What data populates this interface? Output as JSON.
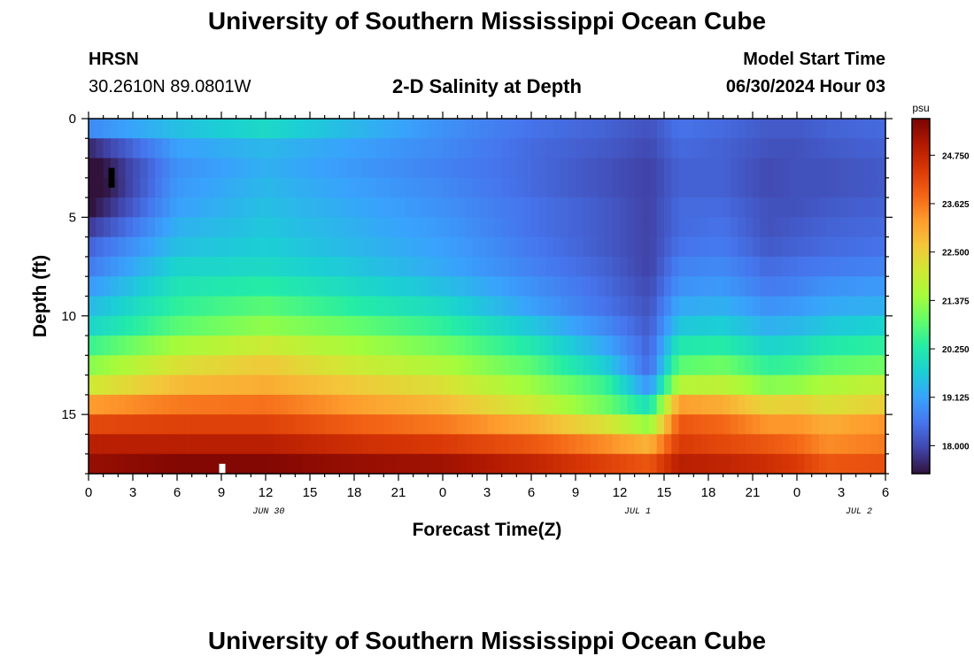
{
  "header": {
    "title": "University of Southern Mississippi Ocean Cube",
    "station": "HRSN",
    "coords": "30.2610N  89.0801W",
    "plot_title": "2-D Salinity at Depth",
    "model_label": "Model Start Time",
    "model_time": "06/30/2024 Hour 03"
  },
  "footer": {
    "title": "University of Southern Mississippi Ocean Cube"
  },
  "chart_data": {
    "type": "heatmap",
    "title": "2-D Salinity at Depth",
    "xlabel": "Forecast Time(Z)",
    "ylabel": "Depth (ft)",
    "x_ticks": [
      "0",
      "3",
      "6",
      "9",
      "12",
      "15",
      "18",
      "21",
      "0",
      "3",
      "6",
      "9",
      "12",
      "15",
      "18",
      "21",
      "0",
      "3",
      "6"
    ],
    "x_hours_range": [
      0,
      54
    ],
    "date_labels": [
      {
        "label": "JUN 30",
        "hour": 11
      },
      {
        "label": "JUL 1",
        "hour": 36
      },
      {
        "label": "JUL 2",
        "hour": 51
      }
    ],
    "y_ticks": [
      0,
      5,
      10,
      15
    ],
    "ylim": [
      0,
      18
    ],
    "colorbar": {
      "unit": "psu",
      "ticks": [
        "24.750",
        "23.625",
        "22.500",
        "21.375",
        "20.250",
        "19.125",
        "18.000"
      ],
      "vmin": 17.35,
      "vmax": 25.6
    },
    "colors": [
      "#30123b",
      "#4145ab",
      "#4675ed",
      "#39a2fc",
      "#1bcfd4",
      "#24eca6",
      "#61fc6c",
      "#a4fc3b",
      "#d1e834",
      "#f3c63a",
      "#fe9b2d",
      "#f36315",
      "#d93806",
      "#b11901",
      "#7a0403"
    ],
    "depth_rows": [
      0.5,
      1.5,
      2.5,
      3.5,
      4.5,
      5.5,
      6.5,
      7.5,
      8.5,
      9.5,
      10.5,
      11.5,
      12.5,
      13.5,
      14.5,
      15.5,
      16.5,
      17.5
    ],
    "time_hours": [
      0,
      6,
      12,
      18,
      24,
      30,
      35,
      38,
      40,
      43,
      46,
      48,
      50,
      54
    ],
    "salinity": [
      [
        18.8,
        19.5,
        19.9,
        19.4,
        18.9,
        18.5,
        18.3,
        18.1,
        18.5,
        18.4,
        18.2,
        18.2,
        18.3,
        18.4
      ],
      [
        17.6,
        19.1,
        19.4,
        19.1,
        18.8,
        18.4,
        18.2,
        18.0,
        18.4,
        18.3,
        18.1,
        18.1,
        18.2,
        18.3
      ],
      [
        17.1,
        18.9,
        19.3,
        19.0,
        18.7,
        18.4,
        18.1,
        17.9,
        18.3,
        18.3,
        18.0,
        18.1,
        18.1,
        18.2
      ],
      [
        17.0,
        19.0,
        19.4,
        19.1,
        18.8,
        18.4,
        18.1,
        17.9,
        18.3,
        18.3,
        18.0,
        18.1,
        18.1,
        18.2
      ],
      [
        17.3,
        19.1,
        19.5,
        19.2,
        18.9,
        18.5,
        18.2,
        17.9,
        18.4,
        18.4,
        18.1,
        18.1,
        18.2,
        18.3
      ],
      [
        17.8,
        19.3,
        19.6,
        19.3,
        19.0,
        18.5,
        18.2,
        17.9,
        18.4,
        18.5,
        18.1,
        18.2,
        18.3,
        18.4
      ],
      [
        18.3,
        19.5,
        19.7,
        19.4,
        19.1,
        18.6,
        18.2,
        17.9,
        18.5,
        18.6,
        18.2,
        18.3,
        18.4,
        18.5
      ],
      [
        18.6,
        19.8,
        19.9,
        19.6,
        19.2,
        18.7,
        18.3,
        17.9,
        18.7,
        18.8,
        18.4,
        18.5,
        18.6,
        18.7
      ],
      [
        19.0,
        20.1,
        20.3,
        19.9,
        19.5,
        18.9,
        18.4,
        18.0,
        18.9,
        19.0,
        18.6,
        18.7,
        18.9,
        19.0
      ],
      [
        19.4,
        20.4,
        20.8,
        20.3,
        19.9,
        19.1,
        18.5,
        18.1,
        19.2,
        19.3,
        18.9,
        19.0,
        19.2,
        19.3
      ],
      [
        19.8,
        20.8,
        21.3,
        20.9,
        20.4,
        19.6,
        18.8,
        18.2,
        19.6,
        19.7,
        19.3,
        19.4,
        19.6,
        19.8
      ],
      [
        20.5,
        21.5,
        22.0,
        21.5,
        21.0,
        20.2,
        19.2,
        18.3,
        20.2,
        20.3,
        19.8,
        19.9,
        20.2,
        20.4
      ],
      [
        21.2,
        22.2,
        22.6,
        22.0,
        21.6,
        20.8,
        19.7,
        18.4,
        20.8,
        21.0,
        20.4,
        20.5,
        20.8,
        21.0
      ],
      [
        22.0,
        22.8,
        23.0,
        22.6,
        22.2,
        21.4,
        20.5,
        18.9,
        21.7,
        21.8,
        21.2,
        21.3,
        21.6,
        21.9
      ],
      [
        23.2,
        23.6,
        23.7,
        23.2,
        22.8,
        22.0,
        21.0,
        20.0,
        23.2,
        23.0,
        22.4,
        22.5,
        22.2,
        22.5
      ],
      [
        24.2,
        24.3,
        24.3,
        23.9,
        23.6,
        23.0,
        22.2,
        21.3,
        24.0,
        23.8,
        23.3,
        23.3,
        23.0,
        23.3
      ],
      [
        24.9,
        24.9,
        24.9,
        24.6,
        24.4,
        24.0,
        23.4,
        22.9,
        24.4,
        24.2,
        24.0,
        23.8,
        23.4,
        23.6
      ],
      [
        25.3,
        25.5,
        25.5,
        25.3,
        25.2,
        24.8,
        24.3,
        24.0,
        24.9,
        24.8,
        24.6,
        24.4,
        24.0,
        24.1
      ]
    ]
  }
}
